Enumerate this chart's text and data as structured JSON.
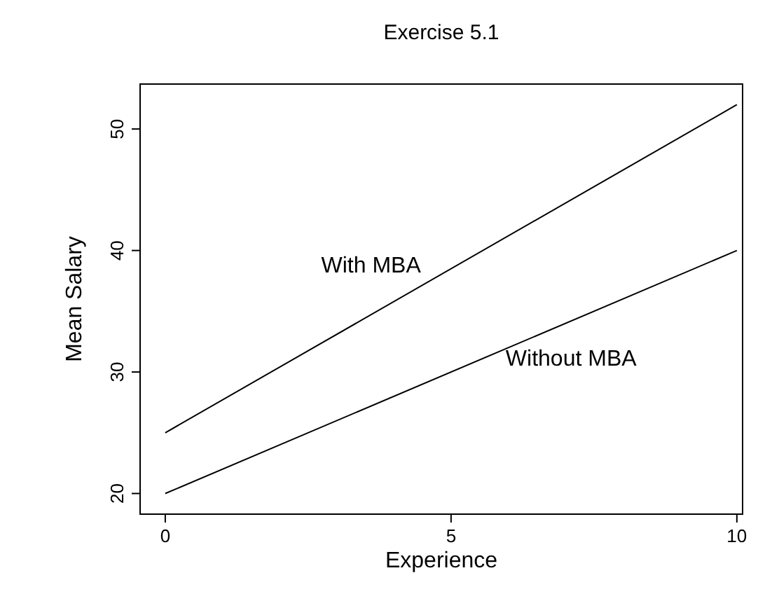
{
  "chart_data": {
    "type": "line",
    "title": "Exercise 5.1",
    "xlabel": "Experience",
    "ylabel": "Mean Salary",
    "x": [
      0,
      10
    ],
    "series": [
      {
        "name": "With MBA",
        "color": "#000000",
        "values": [
          25,
          52
        ]
      },
      {
        "name": "Without MBA",
        "color": "#000000",
        "values": [
          20,
          40
        ]
      }
    ],
    "xlim": [
      -0.44,
      10.1
    ],
    "xticks": [
      0,
      5,
      10
    ],
    "ylim": [
      18.3,
      53.7
    ],
    "yticks": [
      20,
      30,
      40,
      50
    ],
    "grid": false,
    "marker": "none",
    "line_style": "solid"
  }
}
